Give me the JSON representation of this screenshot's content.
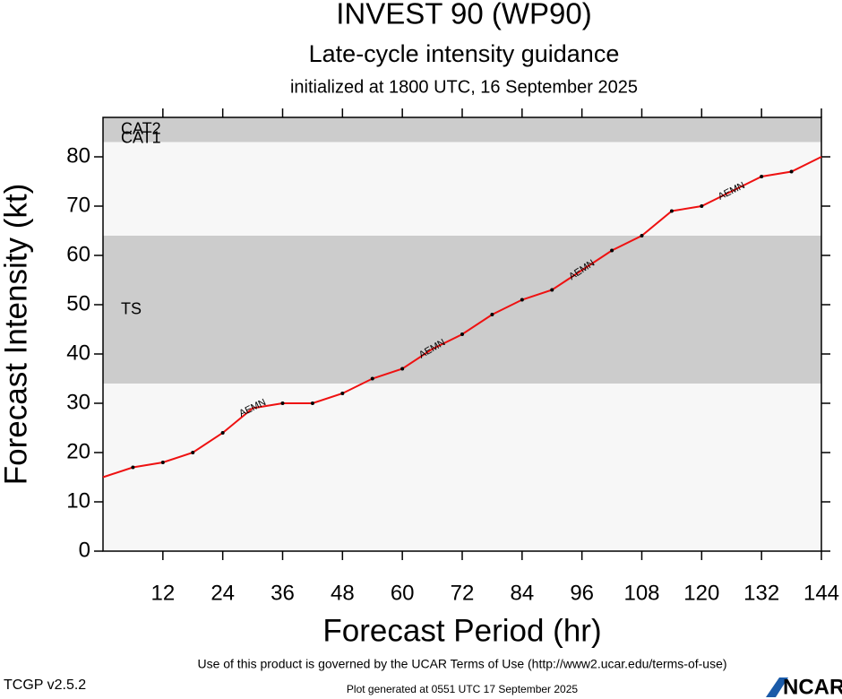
{
  "chart_data": {
    "type": "line",
    "title": "INVEST 90 (WP90)",
    "subtitle": "Late-cycle intensity guidance",
    "initialized": "initialized at 1800 UTC, 16 September 2025",
    "x_label": "Forecast Period (hr)",
    "y_label": "Forecast Intensity (kt)",
    "x": [
      0,
      6,
      12,
      18,
      24,
      30,
      36,
      42,
      48,
      54,
      60,
      66,
      72,
      78,
      84,
      90,
      96,
      102,
      108,
      114,
      120,
      126,
      132,
      138,
      144
    ],
    "series": [
      {
        "name": "AEMN",
        "color": "#ee1111",
        "values": [
          15,
          17,
          18,
          20,
          24,
          29,
          30,
          30,
          32,
          35,
          37,
          41,
          44,
          48,
          51,
          53,
          57,
          61,
          64,
          69,
          70,
          73,
          76,
          77,
          80
        ]
      }
    ],
    "label_hours": [
      30,
      66,
      96,
      126
    ],
    "xlim": [
      0,
      144
    ],
    "xticks": [
      12,
      24,
      36,
      48,
      60,
      72,
      84,
      96,
      108,
      120,
      132,
      144
    ],
    "ylim": [
      0,
      88
    ],
    "yticks": [
      0,
      10,
      20,
      30,
      40,
      50,
      60,
      70,
      80
    ],
    "bands": [
      {
        "label": "CAT2",
        "from": 83,
        "to": 88,
        "color": "#cccccc",
        "text_color": "#ffffff"
      },
      {
        "label": "CAT1",
        "from": 64,
        "to": 83,
        "color": "#f7f7f7",
        "text_color": "#c8c8c8"
      },
      {
        "label": "TS",
        "from": 34,
        "to": 64,
        "color": "#cccccc",
        "text_color": "#ffffff"
      }
    ],
    "background": "#f7f7f7",
    "terms": "Use of this product is governed by the UCAR Terms of Use (http://www2.ucar.edu/terms-of-use)",
    "version": "TCGP v2.5.2",
    "generated": "Plot generated at 0551 UTC   17 September 2025",
    "logo": "NCAR"
  }
}
